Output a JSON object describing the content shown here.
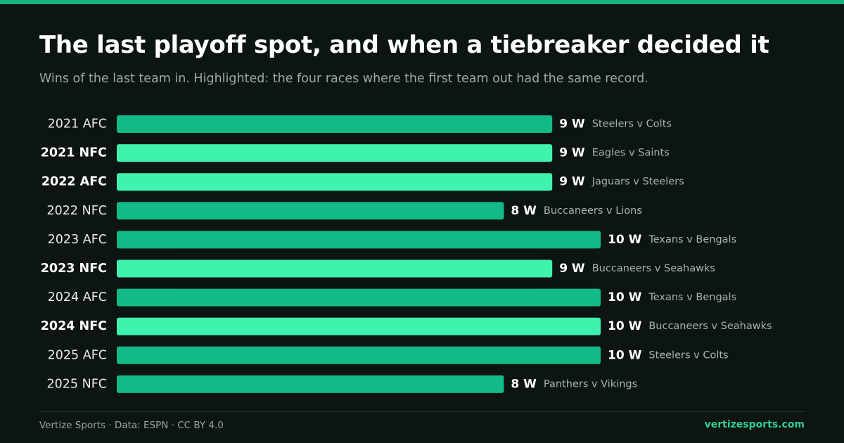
{
  "header": {
    "title": "The last playoff spot, and when a tiebreaker decided it",
    "subtitle": "Wins of the last team in. Highlighted: the four races where the first team out had the same record."
  },
  "colors": {
    "background": "#0d1512",
    "bar": "#12ba86",
    "bar_highlight": "#3ff2ae",
    "accent": "#18b47f",
    "brand": "#2bd08f"
  },
  "chart_data": {
    "type": "bar",
    "orientation": "horizontal",
    "value_suffix": " W",
    "xlim": [
      0,
      10
    ],
    "grid": false,
    "categories": [
      "2021 AFC",
      "2021 NFC",
      "2022 AFC",
      "2022 NFC",
      "2023 AFC",
      "2023 NFC",
      "2024 AFC",
      "2024 NFC",
      "2025 AFC",
      "2025 NFC"
    ],
    "values": [
      9,
      9,
      9,
      8,
      10,
      9,
      10,
      10,
      10,
      8
    ],
    "matchups": [
      "Steelers v Colts",
      "Eagles v Saints",
      "Jaguars v Steelers",
      "Buccaneers v Lions",
      "Texans v Bengals",
      "Buccaneers v Seahawks",
      "Texans v Bengals",
      "Buccaneers v Seahawks",
      "Steelers v Colts",
      "Panthers v Vikings"
    ],
    "highlighted": [
      false,
      true,
      true,
      false,
      false,
      true,
      false,
      true,
      false,
      false
    ]
  },
  "footer": {
    "credit": "Vertize Sports · Data: ESPN · CC BY 4.0",
    "site": "vertizesports.com"
  }
}
